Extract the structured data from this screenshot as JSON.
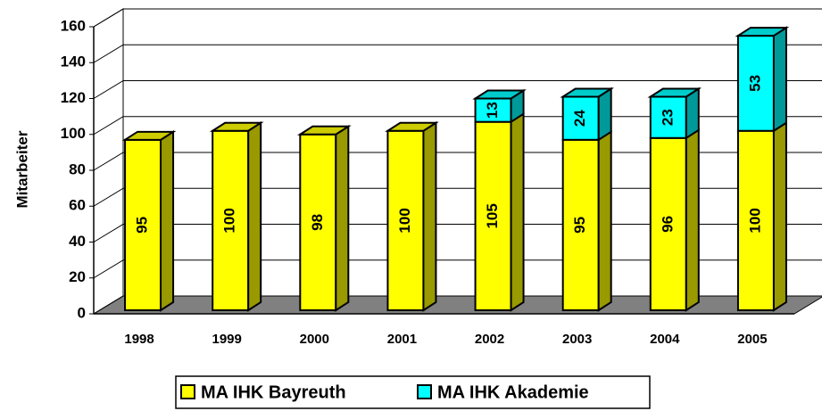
{
  "chart_data": {
    "type": "bar",
    "stacked": true,
    "three_d": true,
    "y_label": "Mitarbeiter",
    "categories": [
      "1998",
      "1999",
      "2000",
      "2001",
      "2002",
      "2003",
      "2004",
      "2005"
    ],
    "series": [
      {
        "name": "MA IHK Bayreuth",
        "color": "#ffff00",
        "values": [
          95,
          100,
          98,
          100,
          105,
          95,
          96,
          100
        ]
      },
      {
        "name": "MA IHK Akademie",
        "color": "#00ffff",
        "values": [
          null,
          null,
          null,
          null,
          13,
          24,
          23,
          53
        ]
      }
    ],
    "ylim": [
      0,
      160
    ],
    "yticks": [
      0,
      20,
      40,
      60,
      80,
      100,
      120,
      140,
      160
    ],
    "grid": true,
    "legend": "bottom"
  }
}
